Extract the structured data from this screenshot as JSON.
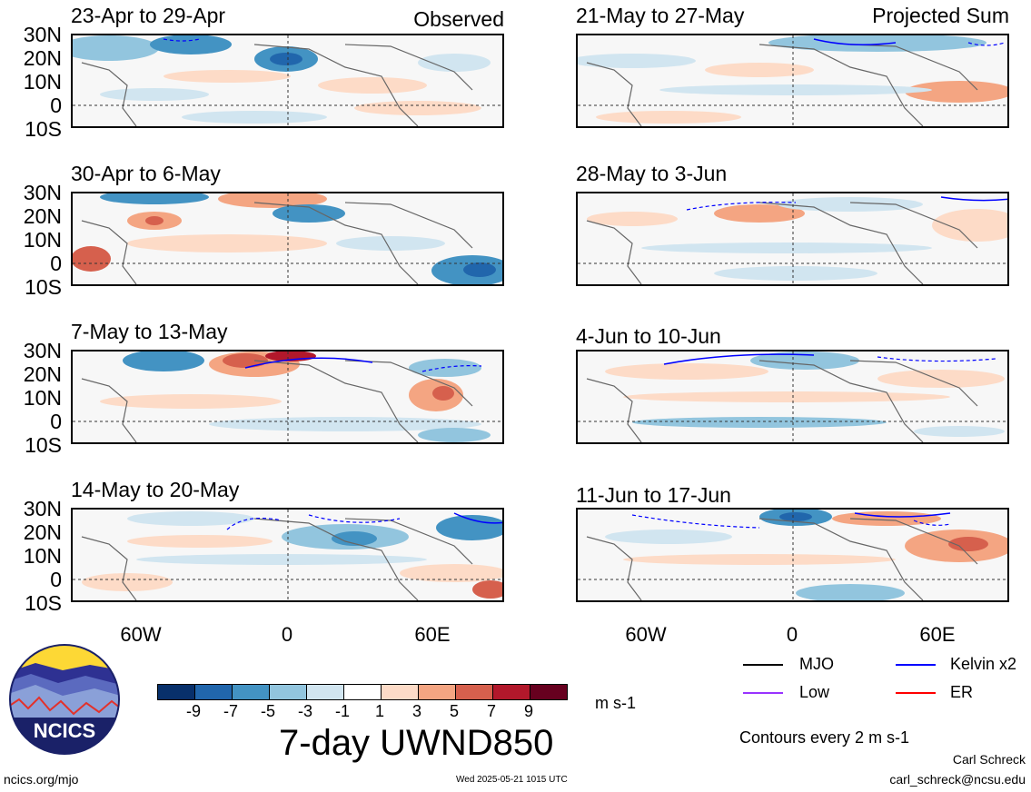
{
  "observed_label": "Observed",
  "projected_label": "Projected Sum",
  "panels_left": [
    {
      "title": "23-Apr to 29-Apr"
    },
    {
      "title": "30-Apr to 6-May"
    },
    {
      "title": "7-May to 13-May"
    },
    {
      "title": "14-May to 20-May"
    }
  ],
  "panels_right": [
    {
      "title": "21-May to 27-May"
    },
    {
      "title": "28-May to 3-Jun"
    },
    {
      "title": "4-Jun to 10-Jun"
    },
    {
      "title": "11-Jun to 17-Jun"
    }
  ],
  "lat_labels": [
    "30N",
    "20N",
    "10N",
    "0",
    "10S"
  ],
  "lon_labels": [
    "60W",
    "0",
    "60E"
  ],
  "colorbar": {
    "ticks": [
      "-9",
      "-7",
      "-5",
      "-3",
      "-1",
      "1",
      "3",
      "5",
      "7",
      "9"
    ],
    "colors": [
      "#08306b",
      "#2166ac",
      "#4393c3",
      "#92c5de",
      "#d1e5f0",
      "#ffffff",
      "#fddbc7",
      "#f4a582",
      "#d6604d",
      "#b2182b",
      "#67001f"
    ],
    "units": "m s-1"
  },
  "main_title": "7-day UWND850",
  "legend": {
    "items": [
      {
        "label": "MJO",
        "color": "#000000"
      },
      {
        "label": "Kelvin x2",
        "color": "#0000ff"
      },
      {
        "label": "Low",
        "color": "#9933ff"
      },
      {
        "label": "ER",
        "color": "#ff0000"
      }
    ],
    "contours_note": "Contours every 2 m s-1"
  },
  "author": "Carl Schreck",
  "email": "carl_schreck@ncsu.edu",
  "site": "ncics.org/mjo",
  "timestamp": "Wed 2025-05-21 1015 UTC",
  "logo_text": "NCICS"
}
